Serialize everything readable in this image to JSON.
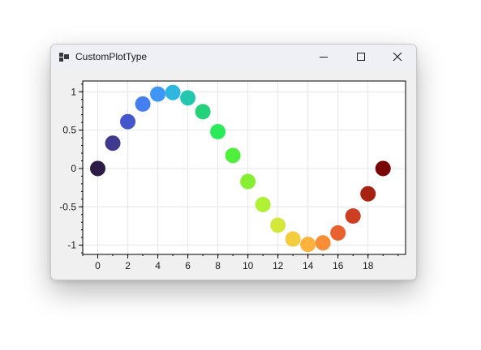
{
  "window": {
    "title": "CustomPlotType",
    "icons": {
      "app": "app-window-icon",
      "minimize": "minimize-icon",
      "maximize": "maximize-icon",
      "close": "close-icon"
    }
  },
  "chart_data": {
    "type": "scatter",
    "x": [
      0,
      1,
      2,
      3,
      4,
      5,
      6,
      7,
      8,
      9,
      10,
      11,
      12,
      13,
      14,
      15,
      16,
      17,
      18,
      19
    ],
    "y": [
      0,
      0.33,
      0.61,
      0.84,
      0.97,
      0.99,
      0.92,
      0.74,
      0.48,
      0.17,
      -0.17,
      -0.47,
      -0.74,
      -0.92,
      -0.99,
      -0.97,
      -0.84,
      -0.62,
      -0.33,
      0
    ],
    "colors": [
      "#2e1a47",
      "#403a8f",
      "#4456cc",
      "#437ff0",
      "#3e97f7",
      "#2eb6e0",
      "#23c7b0",
      "#24d27a",
      "#2bea5a",
      "#4ff03c",
      "#86ef31",
      "#b0f135",
      "#d4e73b",
      "#f4cd3f",
      "#fcb23d",
      "#f88f38",
      "#e8612f",
      "#cd3f20",
      "#a82211",
      "#7a0403"
    ],
    "xlim": [
      -1,
      20.5
    ],
    "ylim": [
      -1.12,
      1.14
    ],
    "xticks": [
      0,
      2,
      4,
      6,
      8,
      10,
      12,
      14,
      16,
      18
    ],
    "xtick_labels": [
      "0",
      "2",
      "4",
      "6",
      "8",
      "10",
      "12",
      "14",
      "16",
      "18"
    ],
    "yticks": [
      1,
      0.5,
      0,
      -0.5,
      -1
    ],
    "ytick_labels": [
      "1",
      "0.5",
      "0",
      "-0.5",
      "-1"
    ],
    "grid": true,
    "title": "",
    "xlabel": "",
    "ylabel": ""
  }
}
